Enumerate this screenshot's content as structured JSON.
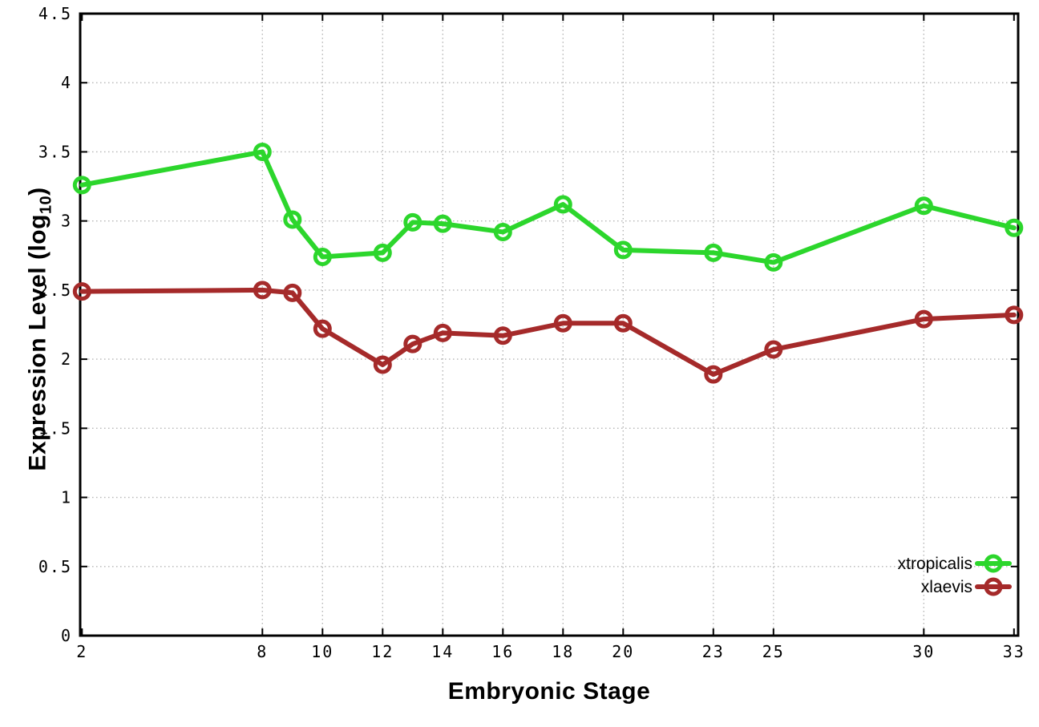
{
  "figure": {
    "background": "#ffffff",
    "border_color": "#000000",
    "grid_color": "#b5b5b5",
    "tick_label_color": "#1a1a1a"
  },
  "chart_data": {
    "type": "line",
    "title": "",
    "xlabel": "Embryonic Stage",
    "ylabel_prefix": "Expression Level (log",
    "ylabel_sub": "10",
    "ylabel_suffix": ")",
    "grid": true,
    "legend_position": "bottom-right",
    "x_range": [
      2,
      33
    ],
    "y_range": [
      0,
      4.5
    ],
    "x_ticks": [
      2,
      8,
      10,
      12,
      14,
      16,
      18,
      20,
      23,
      25,
      30,
      33
    ],
    "x_tick_labels": [
      "2",
      "8",
      "10",
      "12",
      "14",
      "16",
      "18",
      "20",
      "23",
      "25",
      "30",
      "33"
    ],
    "y_ticks": [
      0,
      0.5,
      1,
      1.5,
      2,
      2.5,
      3,
      3.5,
      4,
      4.5
    ],
    "y_tick_labels": [
      "0",
      "0.5",
      "1",
      "1.5",
      "2",
      "2.5",
      "3",
      "3.5",
      "4",
      "4.5"
    ],
    "x": [
      2,
      8,
      9,
      10,
      12,
      13,
      14,
      16,
      18,
      20,
      23,
      25,
      30,
      33
    ],
    "series": [
      {
        "name": "xtropicalis",
        "color": "#2cd62c",
        "marker": "open-circle",
        "values": [
          3.26,
          3.5,
          3.01,
          2.74,
          2.77,
          2.99,
          2.98,
          2.92,
          3.12,
          2.79,
          2.77,
          2.7,
          3.11,
          2.95
        ]
      },
      {
        "name": "xlaevis",
        "color": "#a52a2a",
        "marker": "open-circle",
        "values": [
          2.49,
          2.5,
          2.48,
          2.22,
          1.96,
          2.11,
          2.19,
          2.17,
          2.26,
          2.26,
          1.89,
          2.07,
          2.29,
          2.32
        ]
      }
    ]
  }
}
